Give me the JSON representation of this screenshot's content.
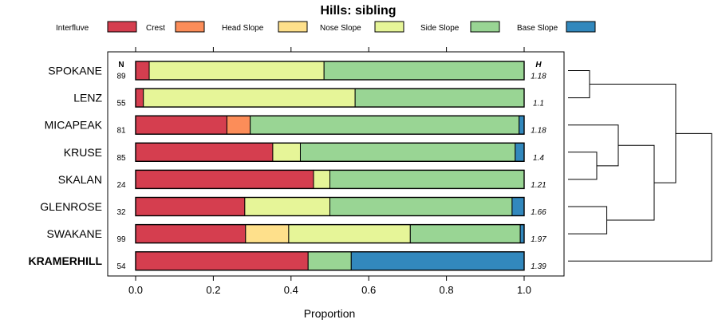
{
  "chart_data": {
    "type": "bar",
    "stacked": true,
    "orientation": "horizontal",
    "title": "Hills: sibling",
    "xlabel": "Proportion",
    "ylabel": "",
    "xlim": [
      0,
      1
    ],
    "x_ticks": [
      "0.0",
      "0.2",
      "0.4",
      "0.6",
      "0.8",
      "1.0"
    ],
    "n_header": "N",
    "h_header": "H",
    "legend_position": "top",
    "classes": [
      {
        "name": "Interfluve",
        "color": "#D53E4F"
      },
      {
        "name": "Crest",
        "color": "#FC8D59"
      },
      {
        "name": "Head Slope",
        "color": "#FEE08B"
      },
      {
        "name": "Nose Slope",
        "color": "#E6F598"
      },
      {
        "name": "Side Slope",
        "color": "#99D594"
      },
      {
        "name": "Base Slope",
        "color": "#3288BD"
      }
    ],
    "rows": [
      {
        "label": "SPOKANE",
        "n": "89",
        "h": "1.18",
        "bold": false,
        "values": [
          0.035,
          0,
          0,
          0.45,
          0.515,
          0
        ]
      },
      {
        "label": "LENZ",
        "n": "55",
        "h": "1.1",
        "bold": false,
        "values": [
          0.02,
          0,
          0,
          0.545,
          0.435,
          0
        ]
      },
      {
        "label": "MICAPEAK",
        "n": "81",
        "h": "1.18",
        "bold": false,
        "values": [
          0.235,
          0.06,
          0,
          0,
          0.692,
          0.013
        ]
      },
      {
        "label": "KRUSE",
        "n": "85",
        "h": "1.4",
        "bold": false,
        "values": [
          0.353,
          0,
          0,
          0.071,
          0.553,
          0.023
        ]
      },
      {
        "label": "SKALAN",
        "n": "24",
        "h": "1.21",
        "bold": false,
        "values": [
          0.458,
          0,
          0,
          0.042,
          0.5,
          0
        ]
      },
      {
        "label": "GLENROSE",
        "n": "32",
        "h": "1.66",
        "bold": false,
        "values": [
          0.281,
          0,
          0,
          0.219,
          0.469,
          0.031
        ]
      },
      {
        "label": "SWAKANE",
        "n": "99",
        "h": "1.97",
        "bold": false,
        "values": [
          0.283,
          0,
          0.111,
          0.313,
          0.283,
          0.01
        ]
      },
      {
        "label": "KRAMERHILL",
        "n": "54",
        "h": "1.39",
        "bold": true,
        "values": [
          0.444,
          0,
          0,
          0,
          0.111,
          0.445
        ]
      }
    ],
    "dendrogram": {
      "leaf_order": [
        "SPOKANE",
        "LENZ",
        "MICAPEAK",
        "KRUSE",
        "SKALAN",
        "GLENROSE",
        "SWAKANE",
        "KRAMERHILL"
      ],
      "merges": [
        {
          "a": "SPOKANE",
          "b": "LENZ",
          "height": 0.15
        },
        {
          "a": "KRUSE",
          "b": "SKALAN",
          "height": 0.2
        },
        {
          "a": "GLENROSE",
          "b": "SWAKANE",
          "height": 0.27
        },
        {
          "a": "MICAPEAK",
          "b": "KRUSE+SKALAN",
          "height": 0.35
        },
        {
          "a": "MICAPEAK+KRUSE+SKALAN",
          "b": "GLENROSE+SWAKANE",
          "height": 0.6
        },
        {
          "a": "SPOKANE+LENZ",
          "b": "MICAPEAK+KRUSE+SKALAN+GLENROSE+SWAKANE",
          "height": 0.75
        },
        {
          "a": "SPOKANE+LENZ+MICAPEAK+KRUSE+SKALAN+GLENROSE+SWAKANE",
          "b": "KRAMERHILL",
          "height": 1.0
        }
      ]
    }
  }
}
